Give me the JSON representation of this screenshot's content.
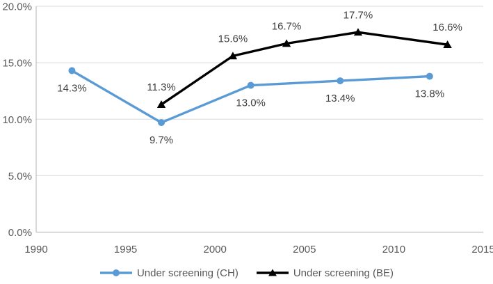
{
  "chart_data": {
    "type": "line",
    "title": "",
    "xlabel": "",
    "ylabel": "",
    "grid": "horizontal",
    "legend_position": "bottom-center",
    "x_axis": {
      "min": 1990,
      "max": 2015,
      "ticks": [
        {
          "v": 1990,
          "label": "1990"
        },
        {
          "v": 1995,
          "label": "1995"
        },
        {
          "v": 2000,
          "label": "2000"
        },
        {
          "v": 2005,
          "label": "2005"
        },
        {
          "v": 2010,
          "label": "2010"
        },
        {
          "v": 2015,
          "label": "2015"
        }
      ]
    },
    "y_axis": {
      "min": 0,
      "max": 20,
      "ticks": [
        {
          "v": 0,
          "label": "0.0%"
        },
        {
          "v": 5,
          "label": "5.0%"
        },
        {
          "v": 10,
          "label": "10.0%"
        },
        {
          "v": 15,
          "label": "15.0%"
        },
        {
          "v": 20,
          "label": "20.0%"
        }
      ]
    },
    "series": [
      {
        "name": "Under screening (CH)",
        "color": "#5B9BD5",
        "marker": "circle",
        "label_side": "below",
        "points": [
          {
            "x": 1992,
            "y": 14.3,
            "label": "14.3%"
          },
          {
            "x": 1997,
            "y": 9.7,
            "label": "9.7%"
          },
          {
            "x": 2002,
            "y": 13.0,
            "label": "13.0%"
          },
          {
            "x": 2007,
            "y": 13.4,
            "label": "13.4%"
          },
          {
            "x": 2012,
            "y": 13.8,
            "label": "13.8%"
          }
        ]
      },
      {
        "name": "Under screening (BE)",
        "color": "#000000",
        "marker": "triangle",
        "label_side": "above",
        "points": [
          {
            "x": 1997,
            "y": 11.3,
            "label": "11.3%"
          },
          {
            "x": 2001,
            "y": 15.6,
            "label": "15.6%"
          },
          {
            "x": 2004,
            "y": 16.7,
            "label": "16.7%"
          },
          {
            "x": 2008,
            "y": 17.7,
            "label": "17.7%"
          },
          {
            "x": 2013,
            "y": 16.6,
            "label": "16.6%"
          }
        ]
      }
    ],
    "colors": {
      "background": "#FFFFFF",
      "gridline": "#D9D9D9",
      "axis_line": "#BFBFBF",
      "tick_label": "#595959",
      "data_label": "#3F3F3F",
      "legend_text": "#595959"
    }
  }
}
